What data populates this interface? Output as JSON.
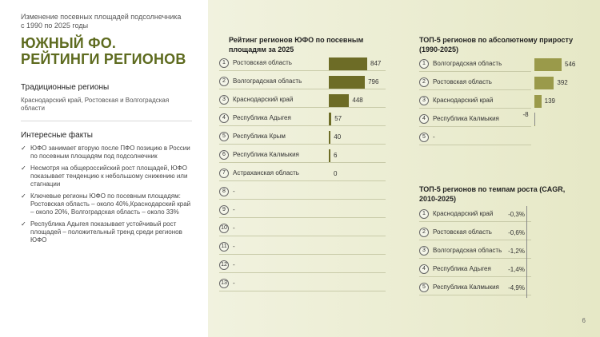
{
  "left": {
    "subtitle": "Изменение посевных площадей подсолнечника\nс 1990 по 2025 годы",
    "title_line1": "ЮЖНЫЙ ФО.",
    "title_line2": "РЕЙТИНГИ РЕГИОНОВ",
    "traditional_heading": "Традиционные регионы",
    "traditional_text": "Краснодарский край, Ростовская и Волгоградская области",
    "facts_heading": "Интересные факты",
    "facts": [
      "ЮФО занимает вторую после ПФО позицию в России по посевным площадям под подсолнечник",
      "Несмотря на общероссийский рост площадей, ЮФО показывает тенденцию к небольшому снижению или стагнации",
      "Ключевые регионы ЮФО по посевным площадям: Ростовская область – около 40%,Краснодарский край – около 20%, Волгоградская область – около 33%",
      "Республика Адыгея показывает устойчивый рост площадей – положительный тренд среди регионов ЮФО"
    ],
    "check_icon": "✓"
  },
  "chart_data": [
    {
      "type": "bar",
      "title": "Рейтинг регионов ЮФО по посевным площадям за 2025",
      "ranks": [
        "1",
        "2",
        "3",
        "4",
        "5",
        "6",
        "7",
        "8",
        "9",
        "10",
        "11",
        "12",
        "13"
      ],
      "categories": [
        "Ростовская область",
        "Волгоградская область",
        "Краснодарский край",
        "Республика Адыгея",
        "Республика Крым",
        "Республика Калмыкия",
        "Астраханская область",
        "-",
        "-",
        "-",
        "-",
        "-",
        "-"
      ],
      "values": [
        847,
        796,
        448,
        57,
        40,
        6,
        0,
        null,
        null,
        null,
        null,
        null,
        null
      ],
      "labels": [
        "847",
        "796",
        "448",
        "57",
        "40",
        "6",
        "0",
        "",
        "",
        "",
        "",
        "",
        ""
      ]
    },
    {
      "type": "bar",
      "title": "ТОП-5 регионов по абсолютному приросту (1990-2025)",
      "ranks": [
        "1",
        "2",
        "3",
        "4",
        "5"
      ],
      "categories": [
        "Волгоградская область",
        "Ростовская область",
        "Краснодарский край",
        "Республика Калмыкия",
        "-"
      ],
      "values": [
        546,
        392,
        139,
        -8,
        null
      ],
      "labels": [
        "546",
        "392",
        "139",
        "-8",
        ""
      ]
    },
    {
      "type": "bar",
      "title": "ТОП-5 регионов по темпам роста (CAGR, 2010-2025)",
      "ranks": [
        "1",
        "2",
        "3",
        "4",
        "5"
      ],
      "categories": [
        "Краснодарский край",
        "Ростовская область",
        "Волгоградская область",
        "Республика Адыгея",
        "Республика Калмыкия"
      ],
      "values": [
        -0.3,
        -0.6,
        -1.2,
        -1.4,
        -4.9
      ],
      "labels": [
        "-0,3%",
        "-0,6%",
        "-1,2%",
        "-1,4%",
        "-4,9%"
      ]
    }
  ],
  "colors": {
    "title": "#5e6b1f",
    "bar_dark": "#6d6c26",
    "bar_light": "#9a9a4a",
    "panel_bg": "#e6e8c6"
  },
  "page_number": "6"
}
